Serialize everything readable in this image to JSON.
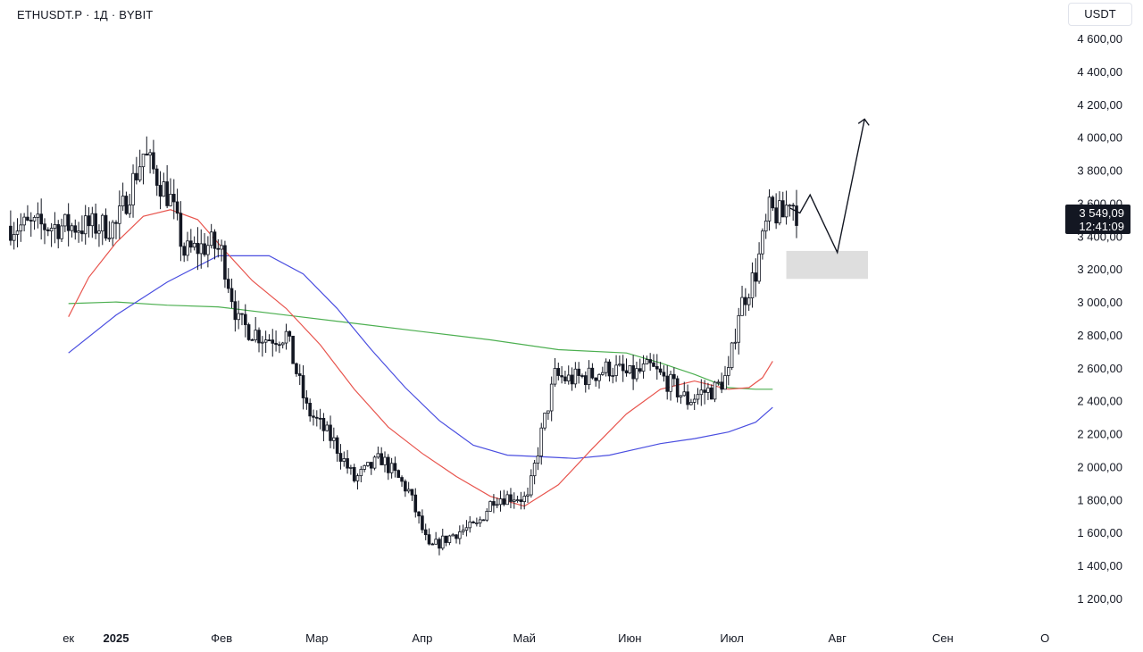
{
  "header": {
    "symbol": "ETHUSDT.P",
    "interval": "1Д",
    "exchange": "BYBIT",
    "separator": "·"
  },
  "currency": "USDT",
  "last_price": {
    "value": "3 549,09",
    "countdown": "12:41:09"
  },
  "colors": {
    "up": "#131722",
    "down": "#131722",
    "ma_fast": "#e8554e",
    "ma_mid": "#4a4ee0",
    "ma_slow": "#4caf50",
    "zone": "#dedede"
  },
  "chart_data": {
    "type": "candlestick",
    "ylim": [
      1100,
      4700
    ],
    "y_axis_labels": [
      "4 600,00",
      "4 400,00",
      "4 200,00",
      "4 000,00",
      "3 800,00",
      "3 600,00",
      "3 400,00",
      "3 200,00",
      "3 000,00",
      "2 800,00",
      "2 600,00",
      "2 400,00",
      "2 200,00",
      "2 000,00",
      "1 800,00",
      "1 600,00",
      "1 400,00",
      "1 200,00"
    ],
    "y_ticks": [
      4600,
      4400,
      4200,
      4000,
      3800,
      3600,
      3400,
      3200,
      3000,
      2800,
      2600,
      2400,
      2200,
      2000,
      1800,
      1600,
      1400,
      1200
    ],
    "x_axis_labels": [
      "ек",
      "2025",
      "Фев",
      "Мар",
      "Апр",
      "Май",
      "Июн",
      "Июл",
      "Авг",
      "Сен",
      "О"
    ],
    "x_axis_days": [
      -14,
      0,
      31,
      59,
      90,
      120,
      151,
      181,
      212,
      243,
      273
    ],
    "x_bold": [
      false,
      true,
      false,
      false,
      false,
      false,
      false,
      false,
      false,
      false,
      false
    ],
    "price_path_days": [
      0,
      8,
      16,
      20,
      28,
      31,
      36,
      44,
      50,
      56,
      64,
      70,
      78,
      86,
      92,
      100,
      106,
      111,
      117,
      121,
      125,
      129,
      133,
      139,
      145,
      151,
      157,
      163,
      168,
      172,
      176,
      180,
      183,
      188,
      192,
      196,
      198,
      200
    ],
    "price_path_values": [
      3460,
      3900,
      3620,
      3300,
      3350,
      3300,
      2870,
      2780,
      2800,
      2350,
      2150,
      1920,
      2050,
      1850,
      1500,
      1600,
      1640,
      1810,
      1820,
      1800,
      2200,
      2550,
      2530,
      2550,
      2600,
      2550,
      2600,
      2500,
      2400,
      2450,
      2470,
      2560,
      2950,
      3180,
      3550,
      3520,
      3640,
      3549
    ],
    "ma_fast_days": [
      -14,
      -8,
      0,
      8,
      16,
      24,
      32,
      40,
      50,
      60,
      70,
      80,
      90,
      100,
      110,
      120,
      130,
      140,
      150,
      160,
      170,
      180,
      186,
      190,
      193
    ],
    "ma_fast_values": [
      2910,
      3150,
      3360,
      3520,
      3560,
      3500,
      3310,
      3130,
      2960,
      2740,
      2470,
      2240,
      2080,
      1940,
      1820,
      1760,
      1890,
      2110,
      2320,
      2470,
      2520,
      2470,
      2480,
      2540,
      2640
    ],
    "ma_mid_days": [
      -14,
      0,
      15,
      30,
      45,
      55,
      65,
      75,
      85,
      95,
      105,
      115,
      125,
      135,
      145,
      160,
      170,
      180,
      188,
      193
    ],
    "ma_mid_values": [
      2690,
      2920,
      3120,
      3280,
      3280,
      3170,
      2960,
      2710,
      2480,
      2280,
      2130,
      2070,
      2060,
      2050,
      2070,
      2140,
      2170,
      2210,
      2270,
      2360
    ],
    "ma_slow_days": [
      -14,
      0,
      15,
      30,
      50,
      70,
      90,
      110,
      130,
      150,
      160,
      170,
      180,
      188,
      193
    ],
    "ma_slow_values": [
      2990,
      3000,
      2980,
      2970,
      2920,
      2870,
      2820,
      2770,
      2710,
      2690,
      2630,
      2560,
      2480,
      2470,
      2470
    ],
    "projection_days": [
      198,
      201,
      204,
      212,
      220
    ],
    "projection_values": [
      3570,
      3540,
      3650,
      3300,
      4110
    ],
    "zone_days": [
      197,
      221
    ],
    "zone_values": [
      3140,
      3310
    ]
  }
}
